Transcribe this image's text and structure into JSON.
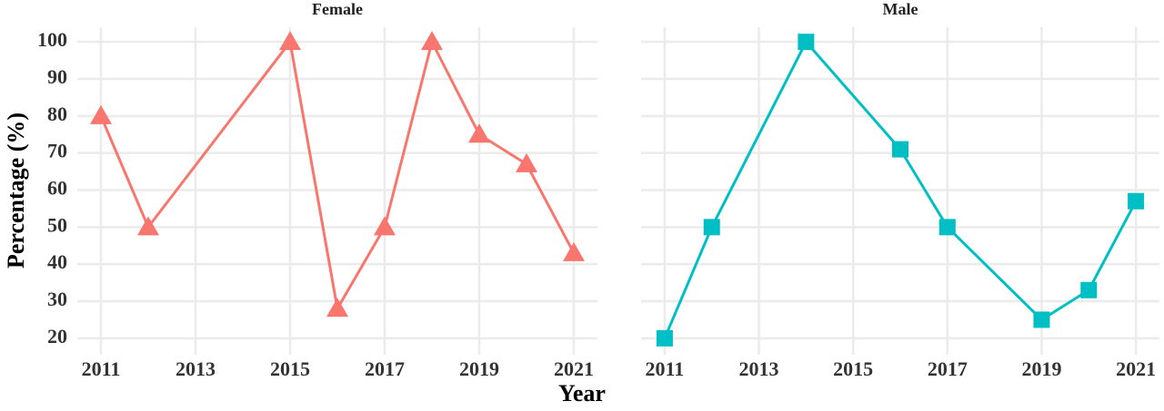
{
  "chart_data": {
    "type": "line",
    "xlabel": "Year",
    "ylabel": "Percentage (%)",
    "ylim": [
      18,
      102
    ],
    "yticks": [
      20,
      30,
      40,
      50,
      60,
      70,
      80,
      90,
      100
    ],
    "xlim": [
      2010.5,
      2021.5
    ],
    "xticks": [
      2011,
      2013,
      2015,
      2017,
      2019,
      2021
    ],
    "grid": true,
    "facets": [
      {
        "title": "Female",
        "color": "#F8766D",
        "marker": "triangle",
        "x": [
          2011,
          2012,
          2015,
          2016,
          2017,
          2018,
          2019,
          2020,
          2021
        ],
        "values": [
          80,
          50,
          100,
          28,
          50,
          100,
          75,
          67,
          43
        ]
      },
      {
        "title": "Male",
        "color": "#00BFC4",
        "marker": "square",
        "x": [
          2011,
          2012,
          2014,
          2016,
          2017,
          2019,
          2020,
          2021
        ],
        "values": [
          20,
          50,
          100,
          71,
          50,
          25,
          33,
          57
        ]
      }
    ]
  }
}
